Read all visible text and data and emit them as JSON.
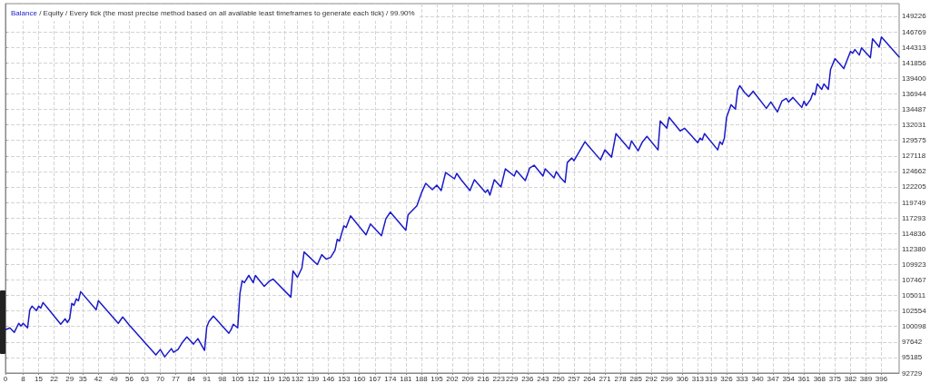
{
  "chart_data": {
    "type": "line",
    "title": "/ Equity / Every tick (the most precise method based on all available least timeframes to generate each tick) / 99.90%",
    "x": [
      0,
      2,
      4,
      6,
      7,
      8,
      10,
      11,
      12,
      14,
      15,
      16,
      17,
      19,
      21,
      25,
      27,
      28,
      29,
      30,
      31,
      32,
      33,
      34,
      41,
      42,
      51,
      53,
      56,
      68,
      70,
      72,
      75,
      76,
      78,
      80,
      82,
      85,
      87,
      90,
      91,
      92,
      94,
      101,
      102,
      103,
      105,
      106,
      107,
      108,
      110,
      112,
      113,
      117,
      119,
      121,
      129,
      130,
      132,
      134,
      135,
      141,
      143,
      145,
      147,
      149,
      150,
      151,
      153,
      154,
      156,
      163,
      165,
      170,
      172,
      174,
      181,
      182,
      186,
      188,
      190,
      193,
      195,
      197,
      199,
      203,
      204,
      206,
      210,
      212,
      217,
      218,
      219,
      221,
      224,
      226,
      230,
      231,
      235,
      237,
      239,
      243,
      244,
      248,
      249,
      251,
      253,
      254,
      256,
      257,
      262,
      263,
      269,
      271,
      274,
      276,
      282,
      283,
      286,
      288,
      290,
      295,
      296,
      299,
      300,
      305,
      307,
      313,
      314,
      315,
      316,
      322,
      323,
      324,
      325,
      326,
      328,
      330,
      331,
      332,
      334,
      336,
      338,
      344,
      346,
      349,
      351,
      353,
      354,
      356,
      360,
      361,
      362,
      364,
      365,
      366,
      367,
      369,
      370,
      372,
      373,
      375,
      379,
      382,
      383,
      384,
      386,
      387,
      391,
      392,
      395,
      396,
      404
    ],
    "series": [
      {
        "name": "Balance",
        "color": "#1a1ac8",
        "values": [
          99600,
          99880,
          99170,
          100600,
          100170,
          100600,
          99880,
          102740,
          103320,
          102600,
          103320,
          103030,
          103890,
          103030,
          102170,
          100460,
          101310,
          100740,
          101310,
          103750,
          103460,
          104460,
          104180,
          105610,
          102740,
          104180,
          100600,
          101600,
          100310,
          95590,
          96450,
          95300,
          96590,
          96020,
          96450,
          97590,
          98450,
          97310,
          98170,
          96310,
          100030,
          100880,
          101740,
          99020,
          99600,
          100460,
          99880,
          105320,
          107320,
          107040,
          108180,
          107040,
          108180,
          106460,
          107180,
          107610,
          104750,
          108900,
          107890,
          109330,
          111900,
          109900,
          111470,
          110760,
          111040,
          112190,
          113900,
          113620,
          116050,
          115760,
          117620,
          114620,
          116340,
          114480,
          117190,
          118200,
          115330,
          117770,
          119200,
          121200,
          122770,
          121770,
          122490,
          121630,
          124490,
          123490,
          124350,
          123350,
          121630,
          123350,
          121340,
          121770,
          120910,
          123350,
          122200,
          125060,
          123920,
          124780,
          123200,
          125210,
          125640,
          123920,
          125060,
          123630,
          124630,
          123630,
          122920,
          126060,
          126780,
          126350,
          129360,
          128930,
          126490,
          128070,
          126920,
          130640,
          128210,
          129500,
          127920,
          129360,
          130210,
          128070,
          132650,
          131500,
          133220,
          131070,
          131500,
          129210,
          129930,
          129640,
          130640,
          128070,
          129360,
          128930,
          129930,
          133220,
          135220,
          134510,
          137510,
          138230,
          137220,
          136510,
          137370,
          134650,
          135650,
          134080,
          135790,
          136220,
          135650,
          136370,
          134790,
          135790,
          135080,
          136080,
          137080,
          136800,
          138510,
          137650,
          138510,
          137650,
          140800,
          142520,
          140940,
          143660,
          143380,
          143950,
          143090,
          144230,
          142660,
          145670,
          144380,
          145950,
          142800
        ]
      }
    ],
    "xlim": [
      0,
      404
    ],
    "xticks": [
      0,
      8,
      15,
      22,
      29,
      35,
      42,
      49,
      56,
      63,
      70,
      77,
      84,
      91,
      98,
      105,
      112,
      119,
      126,
      132,
      139,
      146,
      153,
      160,
      167,
      174,
      181,
      188,
      195,
      202,
      209,
      216,
      223,
      229,
      236,
      243,
      250,
      257,
      264,
      271,
      278,
      285,
      292,
      299,
      306,
      313,
      319,
      326,
      333,
      340,
      347,
      354,
      361,
      368,
      375,
      382,
      389,
      396
    ],
    "ylim": [
      92729,
      151230
    ],
    "yticks": [
      92729,
      95185,
      97642,
      100098,
      102554,
      105011,
      107467,
      109923,
      112380,
      114836,
      117293,
      119749,
      122205,
      124662,
      127118,
      129575,
      132031,
      134487,
      136944,
      139400,
      141856,
      144313,
      146769,
      149226
    ],
    "grid": true,
    "marker": "none",
    "line_style": "solid"
  }
}
